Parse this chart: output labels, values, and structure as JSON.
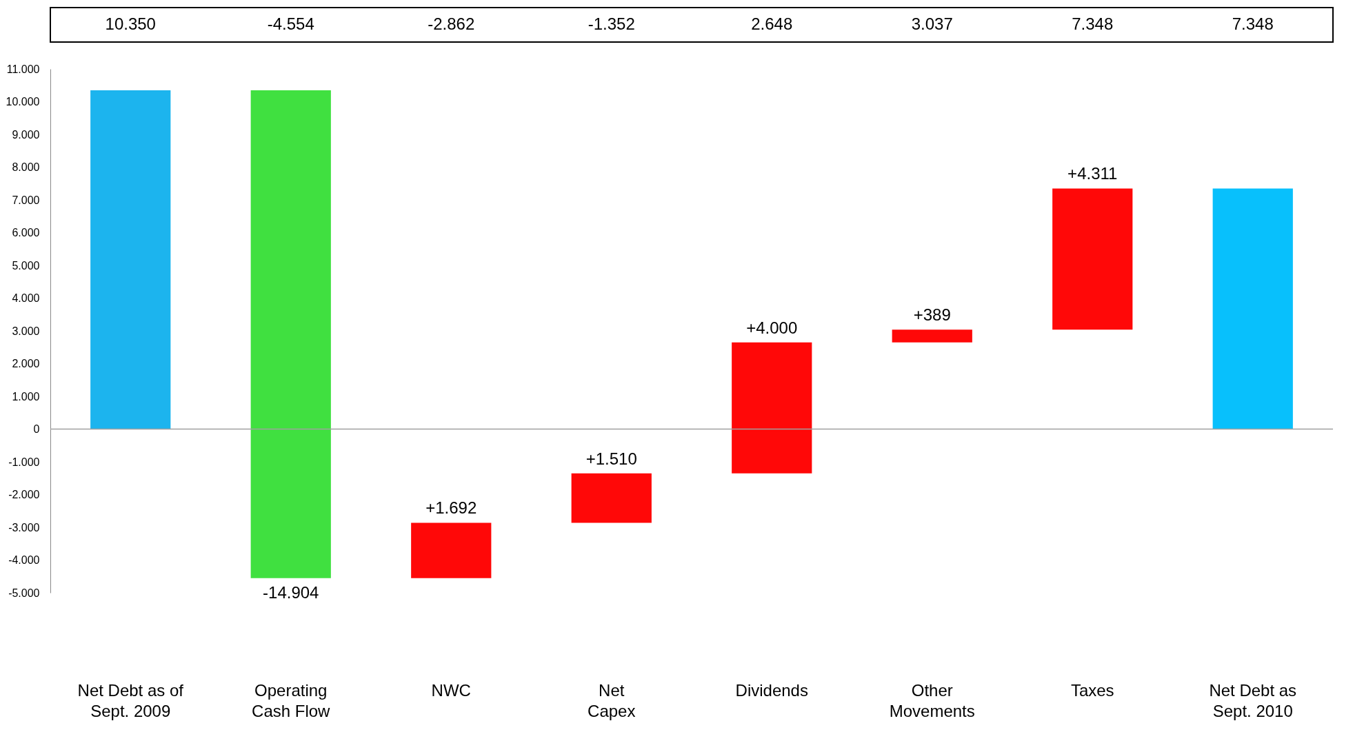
{
  "chart_data": {
    "type": "bar",
    "categories": [
      "Net Debt as of Sept. 2009",
      "Operating Cash Flow",
      "NWC",
      "Net Capex",
      "Dividends",
      "Other Movements",
      "Taxes",
      "Net Debt as Sept. 2010"
    ],
    "values": [
      10350,
      -14904,
      1692,
      1510,
      4000,
      389,
      4311,
      7348
    ],
    "base": [
      0,
      10350,
      -4554,
      -2862,
      -1352,
      2648,
      3037,
      0
    ],
    "colors": [
      "#1cb4ee",
      "#40e040",
      "#ff0808",
      "#ff0808",
      "#ff0808",
      "#ff0808",
      "#ff0808",
      "#08c0fc"
    ],
    "value_labels": [
      null,
      "-14.904",
      "+1.692",
      "+1.510",
      "+4.000",
      "+389",
      "+4.311",
      null
    ],
    "annotations": [
      "10.350",
      "-4.554",
      "-2.862",
      "-1.352",
      "2.648",
      "3.037",
      "7.348",
      "7.348"
    ],
    "ylim": [
      -5000,
      11000
    ],
    "yticks": [
      {
        "value": -5000,
        "label": "-5.000"
      },
      {
        "value": -4000,
        "label": "-4.000"
      },
      {
        "value": -3000,
        "label": "-3.000"
      },
      {
        "value": -2000,
        "label": "-2.000"
      },
      {
        "value": -1000,
        "label": "-1.000"
      },
      0,
      {
        "value": 1000,
        "label": "1.000"
      },
      {
        "value": 2000,
        "label": "2.000"
      },
      {
        "value": 3000,
        "label": "3.000"
      },
      {
        "value": 4000,
        "label": "4.000"
      },
      {
        "value": 5000,
        "label": "5.000"
      },
      {
        "value": 6000,
        "label": "6.000"
      },
      {
        "value": 7000,
        "label": "7.000"
      },
      {
        "value": 8000,
        "label": "8.000"
      },
      {
        "value": 9000,
        "label": "9.000"
      },
      {
        "value": 10000,
        "label": "10.000"
      },
      {
        "value": 11000,
        "label": "11.000"
      }
    ],
    "ref_lines": [
      {
        "axis": "y",
        "value": 0,
        "label": null,
        "color": "#a0a0a0"
      }
    ],
    "grid": false
  }
}
